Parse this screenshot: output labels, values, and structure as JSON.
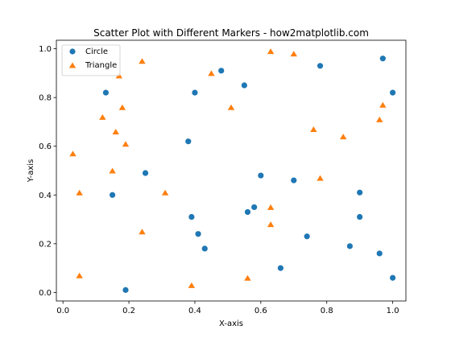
{
  "chart_data": {
    "type": "scatter",
    "title": "Scatter Plot with Different Markers - how2matplotlib.com",
    "xlabel": "X-axis",
    "ylabel": "Y-axis",
    "xlim": [
      -0.02,
      1.04
    ],
    "ylim": [
      -0.035,
      1.035
    ],
    "xticks": [
      0.0,
      0.2,
      0.4,
      0.6,
      0.8,
      1.0
    ],
    "yticks": [
      0.0,
      0.2,
      0.4,
      0.6,
      0.8,
      1.0
    ],
    "xtick_labels": [
      "0.0",
      "0.2",
      "0.4",
      "0.6",
      "0.8",
      "1.0"
    ],
    "ytick_labels": [
      "0.0",
      "0.2",
      "0.4",
      "0.6",
      "0.8",
      "1.0"
    ],
    "grid": false,
    "legend_position": "top-left",
    "series": [
      {
        "name": "Circle",
        "marker": "circle",
        "color": "#1f77b4",
        "points": [
          [
            0.13,
            0.82
          ],
          [
            0.15,
            0.4
          ],
          [
            0.19,
            0.01
          ],
          [
            0.25,
            0.49
          ],
          [
            0.38,
            0.62
          ],
          [
            0.39,
            0.31
          ],
          [
            0.4,
            0.82
          ],
          [
            0.41,
            0.24
          ],
          [
            0.43,
            0.18
          ],
          [
            0.48,
            0.91
          ],
          [
            0.55,
            0.85
          ],
          [
            0.56,
            0.33
          ],
          [
            0.58,
            0.35
          ],
          [
            0.6,
            0.48
          ],
          [
            0.66,
            0.1
          ],
          [
            0.7,
            0.46
          ],
          [
            0.74,
            0.23
          ],
          [
            0.78,
            0.93
          ],
          [
            0.87,
            0.19
          ],
          [
            0.9,
            0.41
          ],
          [
            0.9,
            0.31
          ],
          [
            0.96,
            0.16
          ],
          [
            0.97,
            0.96
          ],
          [
            1.0,
            0.82
          ],
          [
            1.0,
            0.06
          ]
        ]
      },
      {
        "name": "Triangle",
        "marker": "triangle",
        "color": "#ff7f0e",
        "points": [
          [
            0.03,
            0.57
          ],
          [
            0.05,
            0.07
          ],
          [
            0.05,
            0.41
          ],
          [
            0.12,
            0.72
          ],
          [
            0.15,
            0.5
          ],
          [
            0.16,
            0.66
          ],
          [
            0.17,
            0.89
          ],
          [
            0.18,
            0.76
          ],
          [
            0.19,
            0.61
          ],
          [
            0.24,
            0.95
          ],
          [
            0.24,
            0.25
          ],
          [
            0.31,
            0.41
          ],
          [
            0.39,
            0.03
          ],
          [
            0.45,
            0.9
          ],
          [
            0.51,
            0.76
          ],
          [
            0.56,
            0.06
          ],
          [
            0.63,
            0.99
          ],
          [
            0.63,
            0.35
          ],
          [
            0.63,
            0.28
          ],
          [
            0.7,
            0.98
          ],
          [
            0.76,
            0.67
          ],
          [
            0.78,
            0.47
          ],
          [
            0.85,
            0.64
          ],
          [
            0.96,
            0.71
          ],
          [
            0.97,
            0.77
          ]
        ]
      }
    ]
  }
}
